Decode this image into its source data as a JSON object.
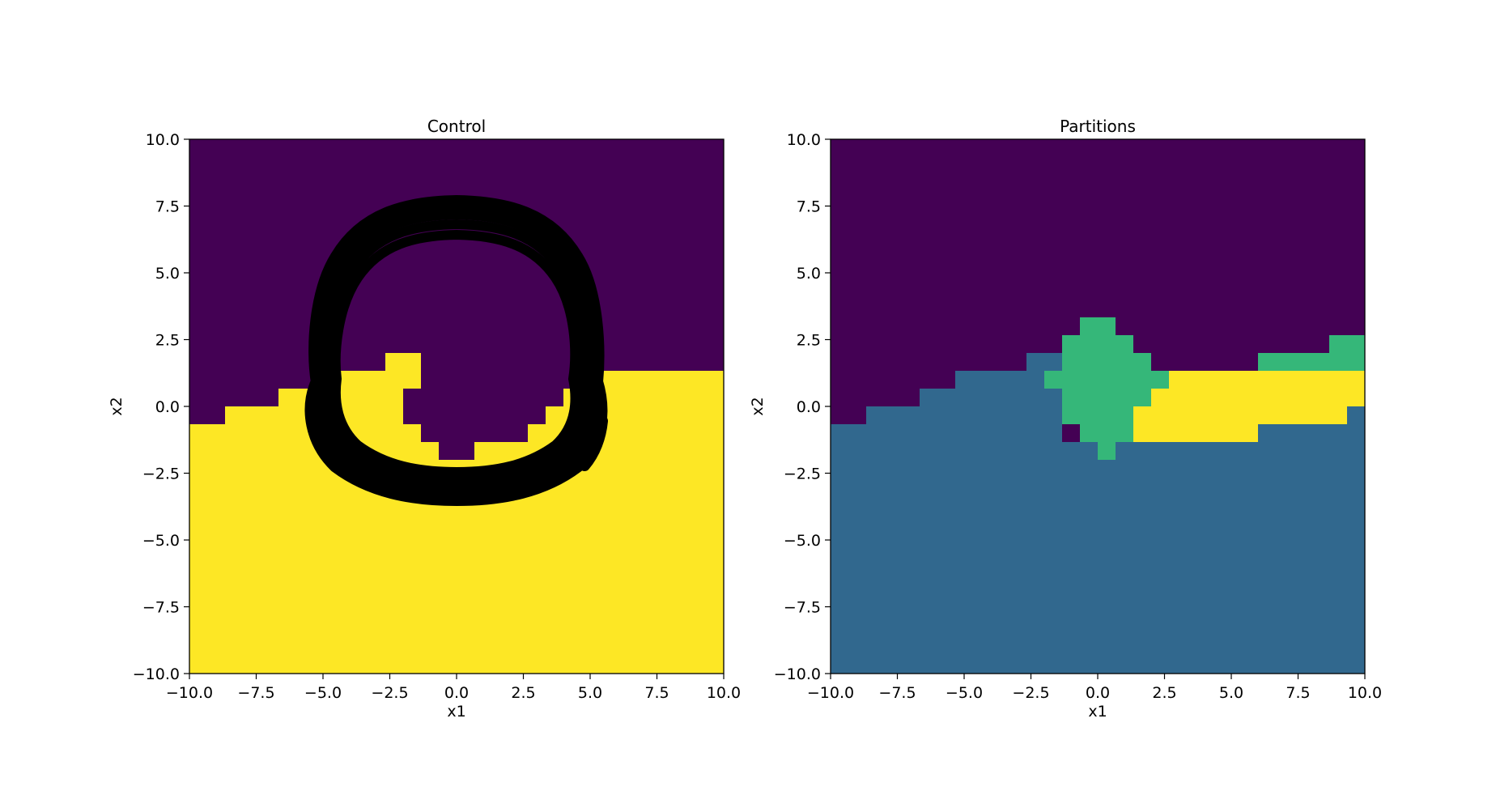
{
  "chart_data": [
    {
      "type": "heatmap",
      "title": "Control",
      "xlabel": "x1",
      "ylabel": "x2",
      "xlim": [
        -10,
        10
      ],
      "ylim": [
        -10,
        10
      ],
      "xticks": [
        "−10.0",
        "−7.5",
        "−5.0",
        "−2.5",
        "0.0",
        "2.5",
        "5.0",
        "7.5",
        "10.0"
      ],
      "yticks": [
        "−10.0",
        "−7.5",
        "−5.0",
        "−2.5",
        "0.0",
        "2.5",
        "5.0",
        "7.5",
        "10.0"
      ],
      "xtick_values": [
        -10,
        -7.5,
        -5,
        -2.5,
        0,
        2.5,
        5,
        7.5,
        10
      ],
      "ytick_values": [
        -10,
        -7.5,
        -5,
        -2.5,
        0,
        2.5,
        5,
        7.5,
        10
      ],
      "colors": {
        "0": "#440154",
        "1": "#fde725"
      },
      "grid": false,
      "region_boundary_x": [
        -10,
        -8.67,
        -8.67,
        -6.67,
        -6.67,
        -5.33,
        -5.33,
        -2.67,
        -2.67,
        -1.33,
        -1.33,
        -0.67,
        -0.67,
        0.67,
        0.67,
        1.33,
        1.33,
        2,
        2,
        2.67,
        2.67,
        10
      ],
      "region_boundary_y": [
        -0.67,
        -0.67,
        0,
        0,
        0.67,
        0.67,
        1.33,
        1.33,
        2,
        2,
        0.67,
        0.67,
        -0.67,
        -0.67,
        -1.33,
        -1.33,
        -2,
        -2,
        -1.33,
        -1.33,
        0.67,
        1.33
      ],
      "note_region": "class 1 (yellow) below the boundary, class 0 (purple) above",
      "trajectory": {
        "color": "#000000",
        "shape": "closed loops",
        "center": [
          0,
          1.8
        ],
        "x_range": [
          -5.5,
          5.5
        ],
        "y_range": [
          -4,
          7.6
        ]
      }
    },
    {
      "type": "heatmap",
      "title": "Partitions",
      "xlabel": "x1",
      "ylabel": "x2",
      "xlim": [
        -10,
        10
      ],
      "ylim": [
        -10,
        10
      ],
      "xticks": [
        "−10.0",
        "−7.5",
        "−5.0",
        "−2.5",
        "0.0",
        "2.5",
        "5.0",
        "7.5",
        "10.0"
      ],
      "yticks": [
        "−10.0",
        "−7.5",
        "−5.0",
        "−2.5",
        "0.0",
        "2.5",
        "5.0",
        "7.5",
        "10.0"
      ],
      "xtick_values": [
        -10,
        -7.5,
        -5,
        -2.5,
        0,
        2.5,
        5,
        7.5,
        10
      ],
      "ytick_values": [
        -10,
        -7.5,
        -5,
        -2.5,
        0,
        2.5,
        5,
        7.5,
        10
      ],
      "colors": {
        "purple": "#440154",
        "blue": "#31688e",
        "green": "#35b779",
        "yellow": "#fde725"
      },
      "grid": false,
      "partitions": [
        {
          "color": "blue",
          "boundary_x": [
            -10,
            -8.67,
            -8.67,
            -6.67,
            -6.67,
            -5.33,
            -5.33,
            -2.67,
            -2.67,
            -1.33,
            -1.33,
            1.33,
            1.33,
            6,
            6,
            9.33,
            9.33,
            10
          ],
          "boundary_y": [
            -0.67,
            -0.67,
            0,
            0,
            0.67,
            0.67,
            1.33,
            1.33,
            2,
            2,
            -1.33,
            -1.33,
            -1.33,
            -1.33,
            -0.67,
            -0.67,
            0,
            0
          ]
        },
        {
          "color": "green",
          "x_range": [
            -2,
            2
          ],
          "y_range": [
            -2,
            3.33
          ],
          "shape": "diamond"
        },
        {
          "color": "yellow",
          "x_range": [
            1.33,
            10
          ],
          "y_range": [
            -1.33,
            1.33
          ]
        },
        {
          "color": "green",
          "x_range": [
            6,
            10
          ],
          "y_range": [
            1.33,
            2.67
          ]
        }
      ]
    }
  ]
}
